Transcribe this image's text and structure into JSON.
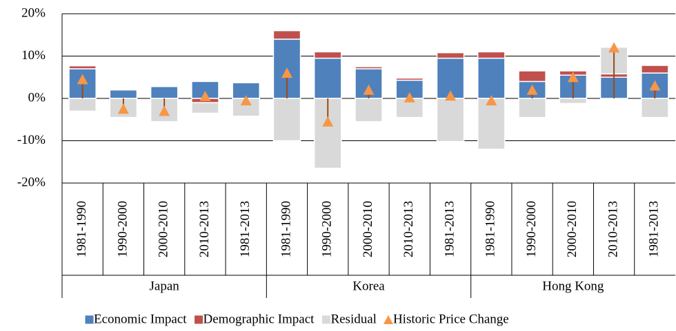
{
  "chart_data": {
    "type": "stacked_bar_with_markers",
    "groups": [
      {
        "name": "Japan",
        "categories": [
          "1981-1990",
          "1990-2000",
          "2000-2010",
          "2010-2013",
          "1981-2013"
        ]
      },
      {
        "name": "Korea",
        "categories": [
          "1981-1990",
          "1990-2000",
          "2000-2010",
          "2010-2013",
          "1981-2013"
        ]
      },
      {
        "name": "Hong Kong",
        "categories": [
          "1981-1990",
          "1990-2000",
          "2000-2010",
          "2010-2013",
          "1981-2013"
        ]
      }
    ],
    "series": [
      {
        "name": "Economic Impact",
        "color": "#4f81bd",
        "kind": "bar",
        "values": [
          7,
          2,
          2.8,
          4,
          3.7,
          14,
          9.5,
          7,
          4.3,
          9.5,
          9.5,
          4,
          5.5,
          5,
          6
        ]
      },
      {
        "name": "Demographic Impact",
        "color": "#c0504d",
        "kind": "bar",
        "values": [
          0.7,
          0,
          0,
          -1,
          0,
          2,
          1.5,
          0.5,
          0.5,
          1.3,
          1.5,
          2.5,
          1,
          0.8,
          1.8
        ]
      },
      {
        "name": "Residual",
        "color": "#d9d9d9",
        "kind": "bar",
        "values": [
          -3,
          -4.5,
          -5.5,
          -2.5,
          -4.2,
          -10,
          -16.5,
          -5.5,
          -4.5,
          -10.2,
          -12,
          -4.5,
          -1.2,
          6.3,
          -4.5
        ]
      },
      {
        "name": "Historic Price Change",
        "color": "#f79646",
        "kind": "marker",
        "values": [
          4.5,
          -2.5,
          -3,
          0.5,
          -0.5,
          6,
          -5.5,
          2,
          0.2,
          0.6,
          -0.5,
          2,
          5,
          12,
          3
        ]
      }
    ],
    "ylim": [
      -20,
      20
    ],
    "yticks": [
      {
        "value": -20,
        "label": "-20%"
      },
      {
        "value": -10,
        "label": "-10%"
      },
      {
        "value": 0,
        "label": "0%"
      },
      {
        "value": 10,
        "label": "10%"
      },
      {
        "value": 20,
        "label": "20%"
      }
    ],
    "negative_tick_color": "#ff0000",
    "grid": true
  }
}
